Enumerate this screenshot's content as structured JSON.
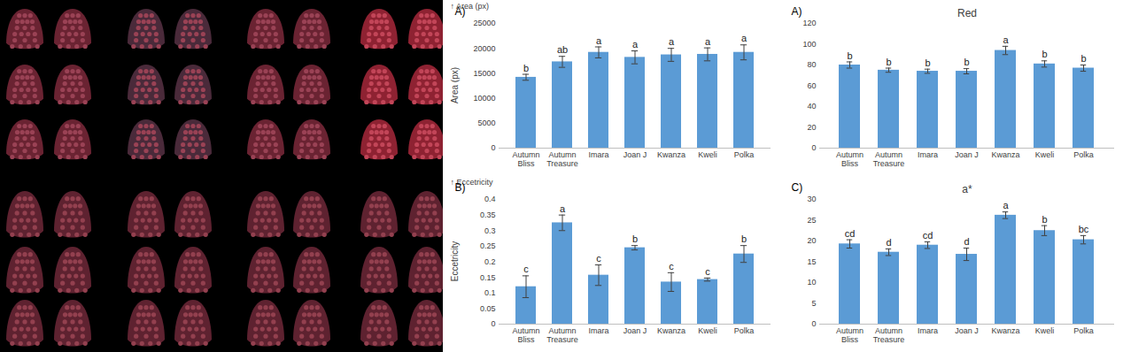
{
  "chart_data": [
    {
      "type": "bar",
      "panel": "A)",
      "ylabel": "Area (px)",
      "categories": [
        "Autumn Bliss",
        "Autumn Treasure",
        "Imara",
        "Joan J",
        "Kwanza",
        "Kweli",
        "Polka"
      ],
      "values": [
        14200,
        17300,
        19200,
        18200,
        18700,
        18800,
        19200
      ],
      "errors": [
        600,
        1100,
        1100,
        1300,
        1300,
        1300,
        1500
      ],
      "significance_letters": [
        "b",
        "ab",
        "a",
        "a",
        "a",
        "a",
        "a"
      ],
      "color": "#5b9bd5",
      "ylim": [
        0,
        25000
      ],
      "yticks": [
        0,
        5000,
        10000,
        15000,
        20000,
        25000
      ]
    },
    {
      "type": "bar",
      "panel": "B)",
      "ylabel": "Eccetricity",
      "categories": [
        "Autumn Bliss",
        "Autumn Treasure",
        "Imara",
        "Joan J",
        "Kwanza",
        "Kweli",
        "Polka"
      ],
      "values": [
        0.12,
        0.325,
        0.157,
        0.245,
        0.135,
        0.143,
        0.225
      ],
      "errors": [
        0.035,
        0.025,
        0.033,
        0.007,
        0.03,
        0.005,
        0.027
      ],
      "significance_letters": [
        "c",
        "a",
        "c",
        "b",
        "c",
        "c",
        "b"
      ],
      "color": "#5b9bd5",
      "ylim": [
        0,
        0.4
      ],
      "yticks": [
        0,
        0.05,
        0.1,
        0.15,
        0.2,
        0.25,
        0.3,
        0.35,
        0.4
      ]
    },
    {
      "type": "bar",
      "panel": "A)",
      "title": "Red",
      "categories": [
        "Autumn Bliss",
        "Autumn Treasure",
        "Imara",
        "Joan J",
        "Kwanza",
        "Kweli",
        "Polka"
      ],
      "values": [
        80,
        75,
        74,
        74,
        94,
        81,
        77
      ],
      "errors": [
        3,
        2,
        2,
        2.5,
        4,
        3,
        3
      ],
      "significance_letters": [
        "b",
        "b",
        "b",
        "b",
        "a",
        "b",
        "b"
      ],
      "color": "#5b9bd5",
      "ylim": [
        0,
        120
      ],
      "yticks": [
        0,
        20,
        40,
        60,
        80,
        100,
        120
      ]
    },
    {
      "type": "bar",
      "panel": "C)",
      "title": "a*",
      "categories": [
        "Autumn Bliss",
        "Autumn Treasure",
        "Imara",
        "Joan J",
        "Kwanza",
        "Kweli",
        "Polka"
      ],
      "values": [
        19.3,
        17.3,
        19,
        16.8,
        26.2,
        22.5,
        20.3
      ],
      "errors": [
        1,
        0.8,
        0.8,
        1.5,
        0.8,
        1.2,
        1
      ],
      "significance_letters": [
        "cd",
        "d",
        "cd",
        "d",
        "a",
        "b",
        "bc"
      ],
      "color": "#5b9bd5",
      "ylim": [
        0,
        30
      ],
      "yticks": [
        0,
        5,
        10,
        15,
        20,
        25,
        30
      ]
    }
  ]
}
